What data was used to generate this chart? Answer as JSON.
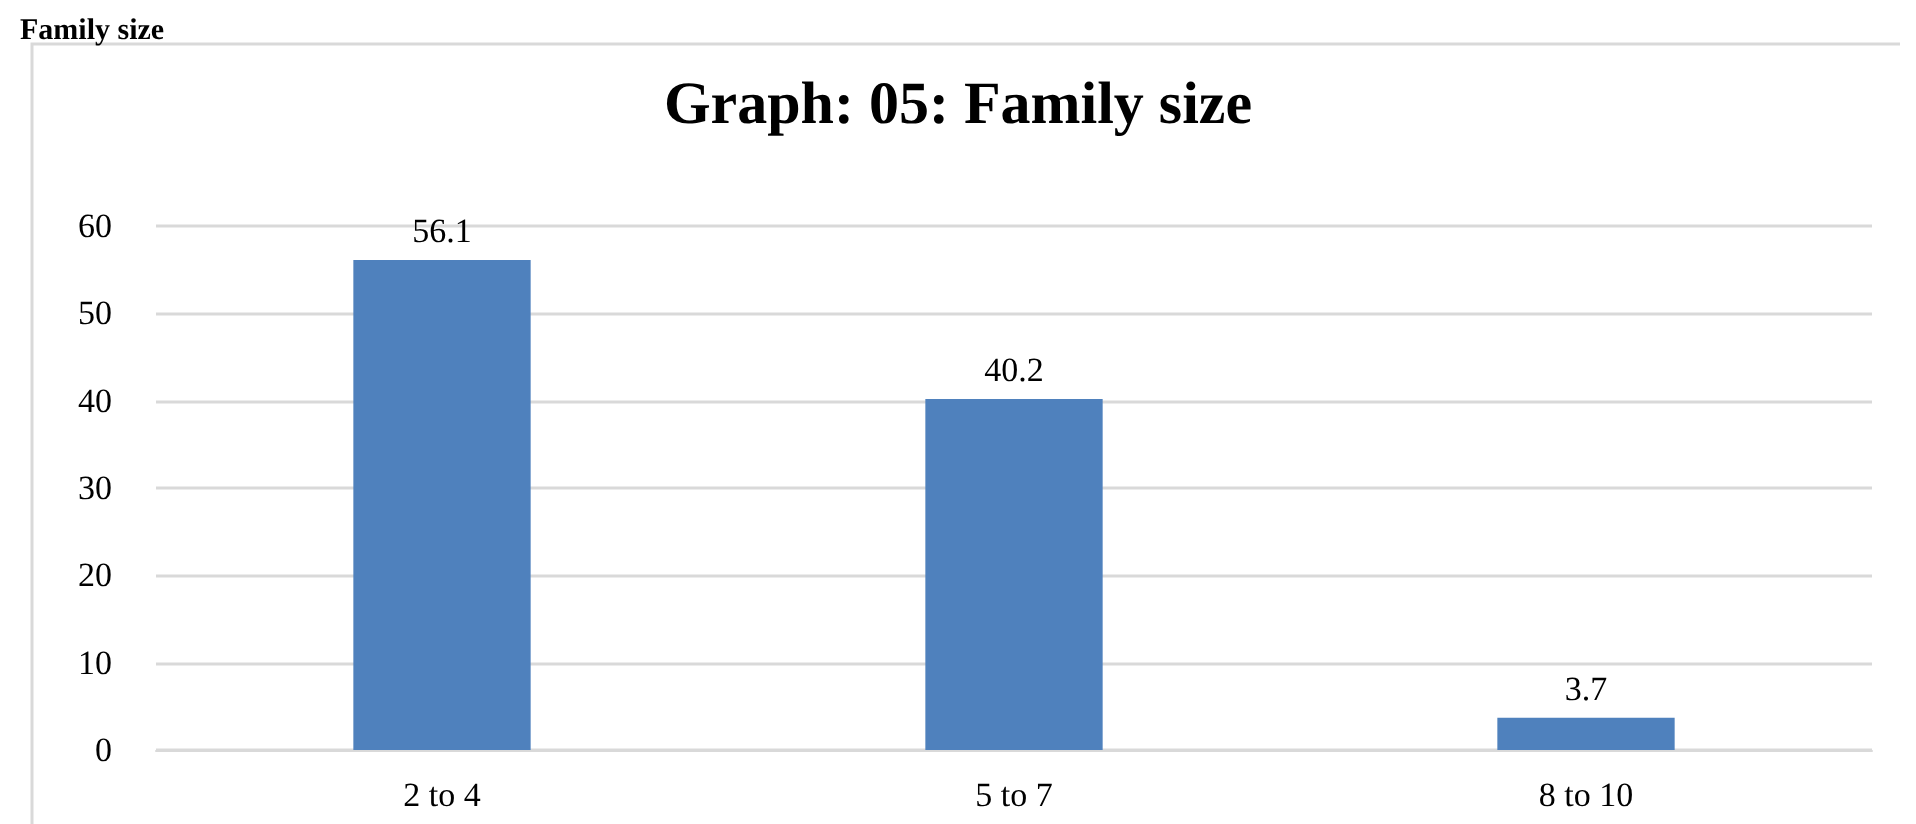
{
  "chart_data": {
    "type": "bar",
    "title": "Graph: 05: Family size",
    "annotations": [
      "Family size"
    ],
    "categories": [
      "2 to 4",
      "5 to 7",
      "8 to 10"
    ],
    "values": [
      56.1,
      40.2,
      3.7
    ],
    "color": "#4f81bd",
    "ylim": [
      0,
      60
    ],
    "yticks": [
      0,
      10,
      20,
      30,
      40,
      50,
      60
    ],
    "grid": "y",
    "data_labels": true
  }
}
